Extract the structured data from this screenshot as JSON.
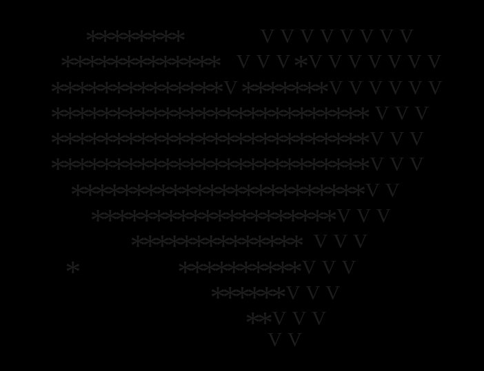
{
  "screen": {
    "background_color": "#000000",
    "glyph_color": "#1d1d1d"
  },
  "ascii_art": {
    "description": "Faint dark ASCII-art pattern of asterisk and V glyphs on a black screen, forming a heart-like shape tapering to a point at the bottom",
    "star_char": "*",
    "v_char": "V",
    "lines": [
      "                 ********               VVVVVVVV",
      "            *************   VVV*VVVVVVV",
      "          **************V*******VVVVVV",
      "          ************************** VVV",
      "          **************************VVV",
      "          **************************VVV",
      "              ************************VV",
      "                  ********************VVV",
      "                          **************  VVV",
      "             *                    **********VVV",
      "                                          ******VVV",
      "                                                 **VVV",
      "                                                     VV"
    ]
  }
}
